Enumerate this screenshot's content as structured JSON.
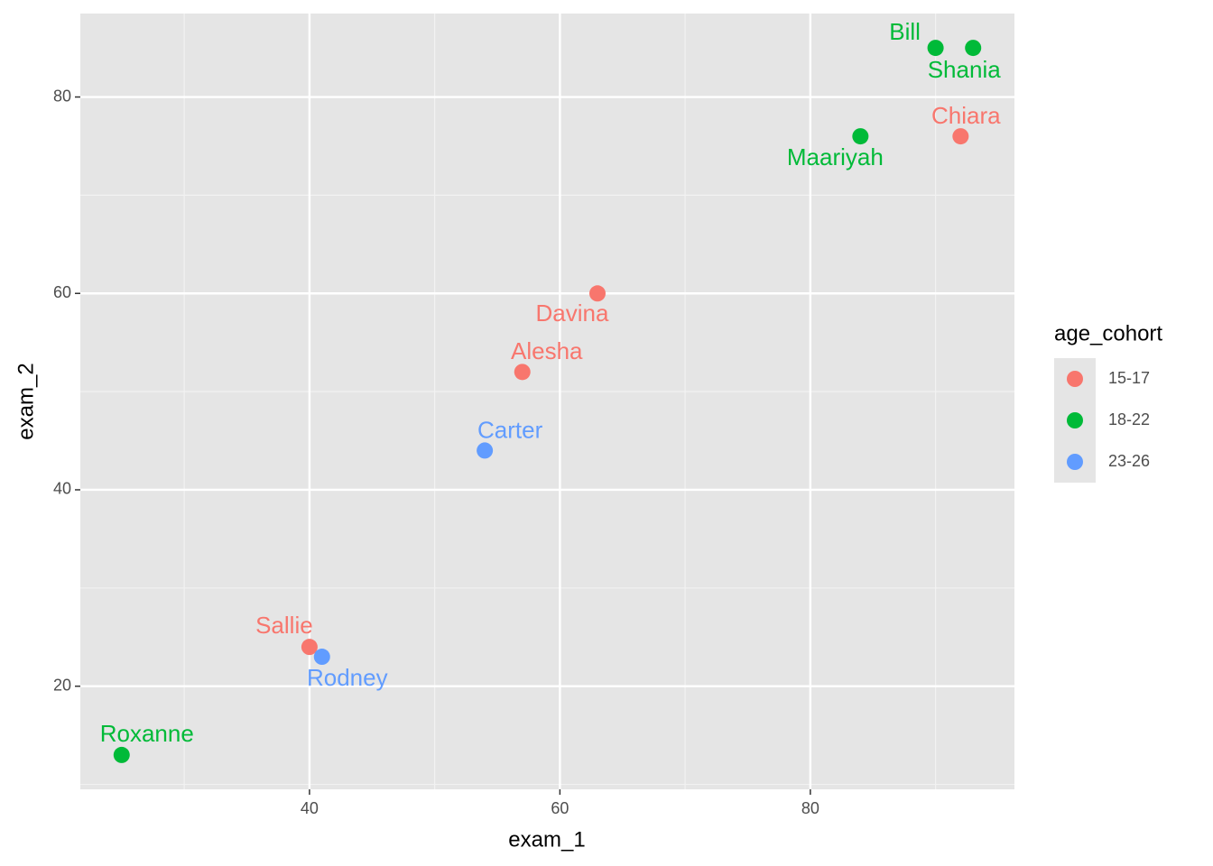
{
  "chart_data": {
    "type": "scatter",
    "x_label": "exam_1",
    "y_label": "exam_2",
    "xlim": [
      21.7,
      96.3
    ],
    "ylim": [
      9.5,
      88.5
    ],
    "xticks": [
      40,
      60,
      80
    ],
    "yticks": [
      20,
      40,
      60,
      80
    ],
    "xminor_ticks": [
      30,
      50,
      70,
      90
    ],
    "yminor_ticks": [
      10,
      30,
      50,
      70
    ],
    "grid": true,
    "legend_title": "age_cohort",
    "legend_position": "right",
    "series": [
      {
        "name": "15-17",
        "color": "#F8766D",
        "x": [
          92,
          63,
          57,
          40
        ],
        "values": [
          76,
          60,
          52,
          24
        ],
        "labels": [
          "Chiara",
          "Davina",
          "Alesha",
          "Sallie"
        ]
      },
      {
        "name": "18-22",
        "color": "#00BA38",
        "x": [
          90,
          93,
          84,
          25
        ],
        "values": [
          85,
          85,
          76,
          13
        ],
        "labels": [
          "Bill",
          "Shania",
          "Maariyah",
          "Roxanne"
        ]
      },
      {
        "name": "23-26",
        "color": "#619CFF",
        "x": [
          54,
          41
        ],
        "values": [
          44,
          23
        ],
        "labels": [
          "Carter",
          "Rodney"
        ]
      }
    ]
  }
}
